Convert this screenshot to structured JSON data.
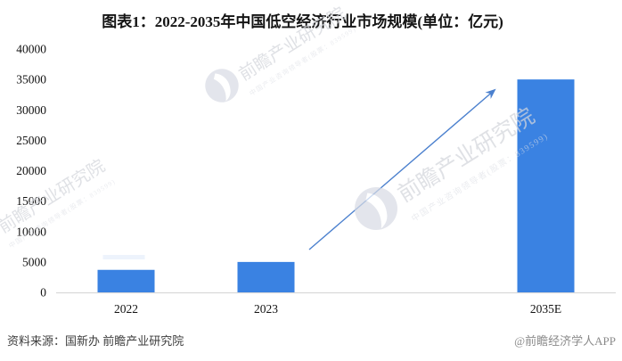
{
  "title": "图表1：2022-2035年中国低空经济行业市场规模(单位：亿元)",
  "chart_data": {
    "type": "bar",
    "categories": [
      "2022",
      "2023",
      "2035E"
    ],
    "values": [
      3700,
      5000,
      35000
    ],
    "title": "图表1：2022-2035年中国低空经济行业市场规模(单位：亿元)",
    "xlabel": "",
    "ylabel": "",
    "unit": "亿元",
    "ylim": [
      0,
      40000
    ],
    "ytick_step": 5000,
    "yticks": [
      "0",
      "5000",
      "10000",
      "15000",
      "20000",
      "25000",
      "30000",
      "35000",
      "40000"
    ],
    "grid": false,
    "legend": false,
    "bar_color": "#3A82E2",
    "annotation_arrow": {
      "from": "2023",
      "to": "2035E",
      "color": "#4B80CE"
    }
  },
  "footer": {
    "source": "资料来源：国新办 前瞻产业研究院",
    "credit": "@前瞻经济学人APP"
  },
  "watermark": {
    "brand": "前瞻产业研究院",
    "tagline": "中国产业咨询领导者(股票：839599)"
  }
}
